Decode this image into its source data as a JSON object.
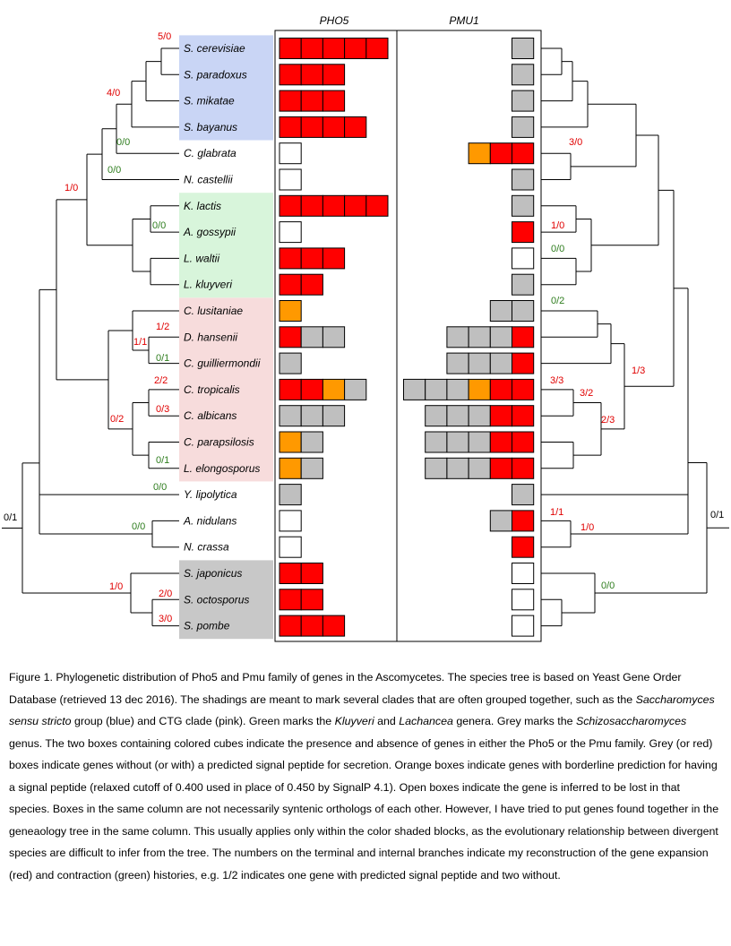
{
  "columns": {
    "left": "PHO5",
    "right": "PMU1"
  },
  "colors": {
    "red": "#ff0000",
    "grey": "#bfbfbf",
    "orange": "#ff9900",
    "open": "#ffffff",
    "expansion": "#e00000",
    "contraction": "#2e7d1e",
    "shade_blue": "#c9d5f5",
    "shade_green": "#d8f5db",
    "shade_pink": "#f7dcdc",
    "shade_grey": "#c8c8c8"
  },
  "species": [
    {
      "name": "S. cerevisiae",
      "shade": "blue",
      "pho5": [
        "r",
        "r",
        "r",
        "r",
        "r"
      ],
      "pmu1": [
        "g"
      ]
    },
    {
      "name": "S. paradoxus",
      "shade": "blue",
      "pho5": [
        "r",
        "r",
        "r"
      ],
      "pmu1": [
        "g"
      ]
    },
    {
      "name": "S. mikatae",
      "shade": "blue",
      "pho5": [
        "r",
        "r",
        "r"
      ],
      "pmu1": [
        "g"
      ]
    },
    {
      "name": "S. bayanus",
      "shade": "blue",
      "pho5": [
        "r",
        "r",
        "r",
        "r"
      ],
      "pmu1": [
        "g"
      ]
    },
    {
      "name": "C. glabrata",
      "shade": "none",
      "pho5": [
        "w"
      ],
      "pmu1": [
        "o",
        "r",
        "r"
      ]
    },
    {
      "name": "N. castellii",
      "shade": "none",
      "pho5": [
        "w"
      ],
      "pmu1": [
        "g"
      ]
    },
    {
      "name": "K. lactis",
      "shade": "green",
      "pho5": [
        "r",
        "r",
        "r",
        "r",
        "r"
      ],
      "pmu1": [
        "g"
      ]
    },
    {
      "name": "A. gossypii",
      "shade": "green",
      "pho5": [
        "w"
      ],
      "pmu1": [
        "r"
      ]
    },
    {
      "name": "L. waltii",
      "shade": "green",
      "pho5": [
        "r",
        "r",
        "r"
      ],
      "pmu1": [
        "w"
      ]
    },
    {
      "name": "L. kluyveri",
      "shade": "green",
      "pho5": [
        "r",
        "r"
      ],
      "pmu1": [
        "g"
      ]
    },
    {
      "name": "C. lusitaniae",
      "shade": "pink",
      "pho5": [
        "o"
      ],
      "pmu1": [
        "g",
        "g"
      ]
    },
    {
      "name": "D. hansenii",
      "shade": "pink",
      "pho5": [
        "r",
        "g",
        "g"
      ],
      "pmu1": [
        "g",
        "g",
        "g",
        "r"
      ]
    },
    {
      "name": "C. guilliermondii",
      "shade": "pink",
      "pho5": [
        "g"
      ],
      "pmu1": [
        "g",
        "g",
        "g",
        "r"
      ]
    },
    {
      "name": "C. tropicalis",
      "shade": "pink",
      "pho5": [
        "r",
        "r",
        "o",
        "g"
      ],
      "pmu1": [
        "g",
        "g",
        "g",
        "o",
        "r",
        "r"
      ]
    },
    {
      "name": "C. albicans",
      "shade": "pink",
      "pho5": [
        "g",
        "g",
        "g"
      ],
      "pmu1": [
        "g",
        "g",
        "g",
        "r",
        "r"
      ]
    },
    {
      "name": "C. parapsilosis",
      "shade": "pink",
      "pho5": [
        "o",
        "g"
      ],
      "pmu1": [
        "g",
        "g",
        "g",
        "r",
        "r"
      ]
    },
    {
      "name": "L. elongosporus",
      "shade": "pink",
      "pho5": [
        "o",
        "g"
      ],
      "pmu1": [
        "g",
        "g",
        "g",
        "r",
        "r"
      ]
    },
    {
      "name": "Y. lipolytica",
      "shade": "none",
      "pho5": [
        "g"
      ],
      "pmu1": [
        "g"
      ]
    },
    {
      "name": "A. nidulans",
      "shade": "none",
      "pho5": [
        "w"
      ],
      "pmu1": [
        "g",
        "r"
      ]
    },
    {
      "name": "N. crassa",
      "shade": "none",
      "pho5": [
        "w"
      ],
      "pmu1": [
        "r"
      ]
    },
    {
      "name": "S. japonicus",
      "shade": "grey",
      "pho5": [
        "r",
        "r"
      ],
      "pmu1": [
        "w"
      ]
    },
    {
      "name": "S. octosporus",
      "shade": "grey",
      "pho5": [
        "r",
        "r"
      ],
      "pmu1": [
        "w"
      ]
    },
    {
      "name": "S. pombe",
      "shade": "grey",
      "pho5": [
        "r",
        "r",
        "r"
      ],
      "pmu1": [
        "w"
      ]
    }
  ],
  "left_labels": [
    {
      "text": "5/0",
      "color": "red"
    },
    {
      "text": "4/0",
      "color": "red"
    },
    {
      "text": "0/0",
      "color": "green"
    },
    {
      "text": "0/0",
      "color": "green"
    },
    {
      "text": "1/0",
      "color": "red"
    },
    {
      "text": "0/0",
      "color": "green"
    },
    {
      "text": "1/2",
      "color": "red"
    },
    {
      "text": "1/1",
      "color": "red"
    },
    {
      "text": "0/1",
      "color": "green"
    },
    {
      "text": "2/2",
      "color": "red"
    },
    {
      "text": "0/3",
      "color": "red"
    },
    {
      "text": "0/2",
      "color": "red"
    },
    {
      "text": "0/1",
      "color": "green"
    },
    {
      "text": "0/0",
      "color": "green"
    },
    {
      "text": "0/0",
      "color": "green"
    },
    {
      "text": "0/1",
      "color": "black"
    },
    {
      "text": "1/0",
      "color": "red"
    },
    {
      "text": "2/0",
      "color": "red"
    },
    {
      "text": "3/0",
      "color": "red"
    }
  ],
  "right_labels": [
    {
      "text": "3/0",
      "color": "red"
    },
    {
      "text": "1/0",
      "color": "red"
    },
    {
      "text": "0/0",
      "color": "green"
    },
    {
      "text": "0/2",
      "color": "green"
    },
    {
      "text": "1/3",
      "color": "red"
    },
    {
      "text": "3/3",
      "color": "red"
    },
    {
      "text": "3/2",
      "color": "red"
    },
    {
      "text": "2/3",
      "color": "red"
    },
    {
      "text": "1/1",
      "color": "red"
    },
    {
      "text": "1/0",
      "color": "red"
    },
    {
      "text": "0/1",
      "color": "black"
    },
    {
      "text": "0/0",
      "color": "green"
    }
  ],
  "caption": {
    "p1": "Figure 1. Phylogenetic distribution of Pho5 and Pmu family of genes in the Ascomycetes. The species tree is based on Yeast Gene Order Database (retrieved 13 dec 2016). The shadings are meant to mark several clades that are often grouped together, such as the ",
    "i1": "Saccharomyces sensu stricto",
    "p2": " group (blue) and CTG clade (pink). Green marks the ",
    "i2": "Kluyveri",
    "p3": " and ",
    "i3": "Lachancea",
    "p4": " genera. Grey marks the ",
    "i4": "Schizosaccharomyces",
    "p5": " genus. The two boxes containing colored cubes indicate the presence and absence of genes in either the Pho5 or the Pmu family. Grey (or red) boxes indicate genes without (or with) a predicted signal peptide for secretion. Orange boxes indicate genes with borderline prediction for having a signal peptide (relaxed cutoff of 0.400 used in place of 0.450 by SignalP 4.1). Open boxes indicate the gene is inferred to be lost in that species. Boxes in the same column are not necessarily syntenic orthologs of each other. However, I have tried to put genes found together in the geneaology tree in the same column. This usually applies only within the color shaded blocks, as the evolutionary relationship between divergent species are difficult to infer from the tree. The numbers on the terminal and internal branches indicate my reconstruction of the gene expansion (red) and contraction (green) histories, e.g. 1/2 indicates one gene with predicted signal peptide and two without."
  }
}
